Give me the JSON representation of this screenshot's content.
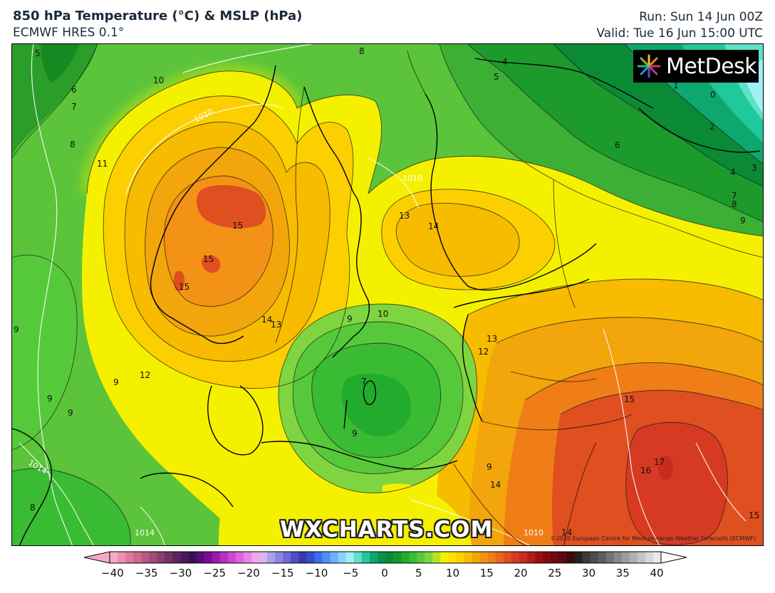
{
  "header": {
    "title": "850 hPa Temperature (°C) & MSLP (hPa)",
    "model": "ECMWF HRES 0.1°",
    "run": "Run: Sun 14 Jun 00Z",
    "valid": "Valid: Tue 16 Jun 15:00 UTC"
  },
  "logo": {
    "text": "MetDesk",
    "icon": "metdesk-logo-icon"
  },
  "watermark": "WXCHARTS.COM",
  "credit": "©2020 European Centre for Medium-range Weather Forecasts (ECMWF)",
  "colorbar": {
    "ticks": [
      "−40",
      "−35",
      "−30",
      "−25",
      "−20",
      "−15",
      "−10",
      "−5",
      "0",
      "5",
      "10",
      "15",
      "20",
      "25",
      "30",
      "35",
      "40"
    ],
    "colors": [
      "#f6a9c6",
      "#ee8fb0",
      "#e2789c",
      "#cf6790",
      "#b85985",
      "#a14b7a",
      "#8a3d70",
      "#733066",
      "#5e2260",
      "#4a1a58",
      "#3a1150",
      "#5a0a7a",
      "#7a0a95",
      "#9a1aaa",
      "#b82ec0",
      "#cf45d0",
      "#de62db",
      "#e884e3",
      "#efa6ea",
      "#d2b8ee",
      "#a9a1e6",
      "#8a86de",
      "#6a6ad3",
      "#4d4fc6",
      "#3a3aa8",
      "#2f4fd0",
      "#3a6ff0",
      "#4f8ff5",
      "#6bb0f8",
      "#8fd0fb",
      "#9ef0f5",
      "#5fe0c8",
      "#21c89a",
      "#0da870",
      "#099050",
      "#0b8a36",
      "#139a2c",
      "#22ab2c",
      "#39bb33",
      "#56c93a",
      "#7ed540",
      "#b6e22e",
      "#f5f000",
      "#ffe000",
      "#fcd000",
      "#f7bb00",
      "#f3a50c",
      "#f39216",
      "#f07e16",
      "#e9661a",
      "#df4f20",
      "#d63a22",
      "#c82b20",
      "#b21c18",
      "#9a0f12",
      "#840a12",
      "#6e0810",
      "#5a0a10",
      "#3a0a0c",
      "#282020",
      "#3a3a3a",
      "#4c4c4c",
      "#5e5e5e",
      "#727272",
      "#888888",
      "#9c9c9c",
      "#b0b0b0",
      "#c4c4c4",
      "#d8d8d8",
      "#eaeaea"
    ]
  },
  "temperature_labels": [
    "5",
    "10",
    "6",
    "7",
    "8",
    "11",
    "8",
    "4",
    "5",
    "1",
    "0",
    "2",
    "6",
    "4",
    "3",
    "7",
    "8",
    "9",
    "13",
    "14",
    "15",
    "15",
    "15",
    "14",
    "13",
    "10",
    "9",
    "9",
    "13",
    "12",
    "12",
    "9",
    "9",
    "9",
    "7",
    "9",
    "15",
    "17",
    "16",
    "14",
    "15",
    "14",
    "9",
    "8"
  ],
  "pressure_labels": [
    "1010",
    "1014",
    "1014",
    "1010",
    "1010"
  ]
}
